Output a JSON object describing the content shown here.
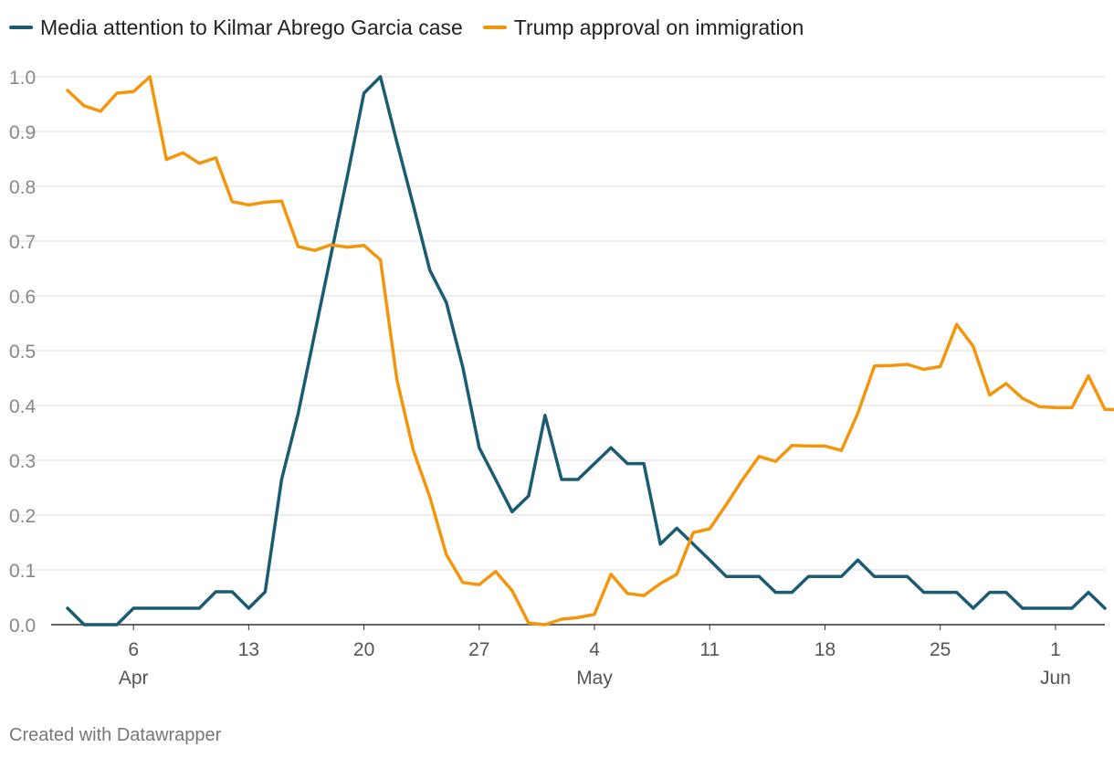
{
  "chart_data": {
    "type": "line",
    "title": "",
    "xlabel": "",
    "ylabel": "",
    "ylim": [
      0,
      1
    ],
    "y_ticks": [
      "0.0",
      "0.1",
      "0.2",
      "0.3",
      "0.4",
      "0.5",
      "0.6",
      "0.7",
      "0.8",
      "0.9",
      "1.0"
    ],
    "x_day_range": [
      0,
      64
    ],
    "x_ticks": [
      {
        "day": 5,
        "label": "6",
        "month": "Apr"
      },
      {
        "day": 12,
        "label": "13",
        "month": ""
      },
      {
        "day": 19,
        "label": "20",
        "month": ""
      },
      {
        "day": 26,
        "label": "27",
        "month": ""
      },
      {
        "day": 33,
        "label": "4",
        "month": "May"
      },
      {
        "day": 40,
        "label": "11",
        "month": ""
      },
      {
        "day": 47,
        "label": "18",
        "month": ""
      },
      {
        "day": 54,
        "label": "25",
        "month": ""
      },
      {
        "day": 61,
        "label": "1",
        "month": "Jun"
      }
    ],
    "x_note": "x values are days since Apr 1",
    "series": [
      {
        "name": "Media attention to Kilmar Abrego Garcia case",
        "color": "#1b5c73",
        "x_start": 1,
        "values": [
          0.03,
          0.0,
          0.0,
          0.0,
          0.03,
          0.03,
          0.03,
          0.03,
          0.03,
          0.06,
          0.06,
          0.03,
          0.06,
          0.265,
          0.385,
          0.53,
          0.675,
          0.82,
          0.97,
          1.0,
          0.88,
          0.765,
          0.647,
          0.588,
          0.47,
          0.323,
          0.265,
          0.206,
          0.235,
          0.382,
          0.265,
          0.265,
          0.294,
          0.323,
          0.294,
          0.294,
          0.147,
          0.176,
          0.147,
          0.118,
          0.088,
          0.088,
          0.088,
          0.059,
          0.059,
          0.088,
          0.088,
          0.088,
          0.118,
          0.088,
          0.088,
          0.088,
          0.059,
          0.059,
          0.059,
          0.03,
          0.059,
          0.059,
          0.03,
          0.03,
          0.03,
          0.03,
          0.059,
          0.03
        ]
      },
      {
        "name": "Trump approval on immigration",
        "color": "#f2960d",
        "x_start": 1,
        "values": [
          0.975,
          0.947,
          0.937,
          0.97,
          0.973,
          1.0,
          0.849,
          0.861,
          0.842,
          0.852,
          0.772,
          0.766,
          0.771,
          0.773,
          0.69,
          0.683,
          0.693,
          0.689,
          0.692,
          0.666,
          0.447,
          0.318,
          0.233,
          0.128,
          0.077,
          0.073,
          0.097,
          0.062,
          0.003,
          0.0,
          0.01,
          0.013,
          0.019,
          0.092,
          0.057,
          0.053,
          0.075,
          0.092,
          0.168,
          0.175,
          0.219,
          0.265,
          0.307,
          0.298,
          0.327,
          0.326,
          0.326,
          0.318,
          0.386,
          0.472,
          0.473,
          0.475,
          0.466,
          0.471,
          0.548,
          0.508,
          0.419,
          0.44,
          0.413,
          0.398,
          0.396,
          0.396,
          0.454,
          0.393,
          0.392
        ]
      }
    ]
  },
  "footer": {
    "credit": "Created with Datawrapper"
  }
}
